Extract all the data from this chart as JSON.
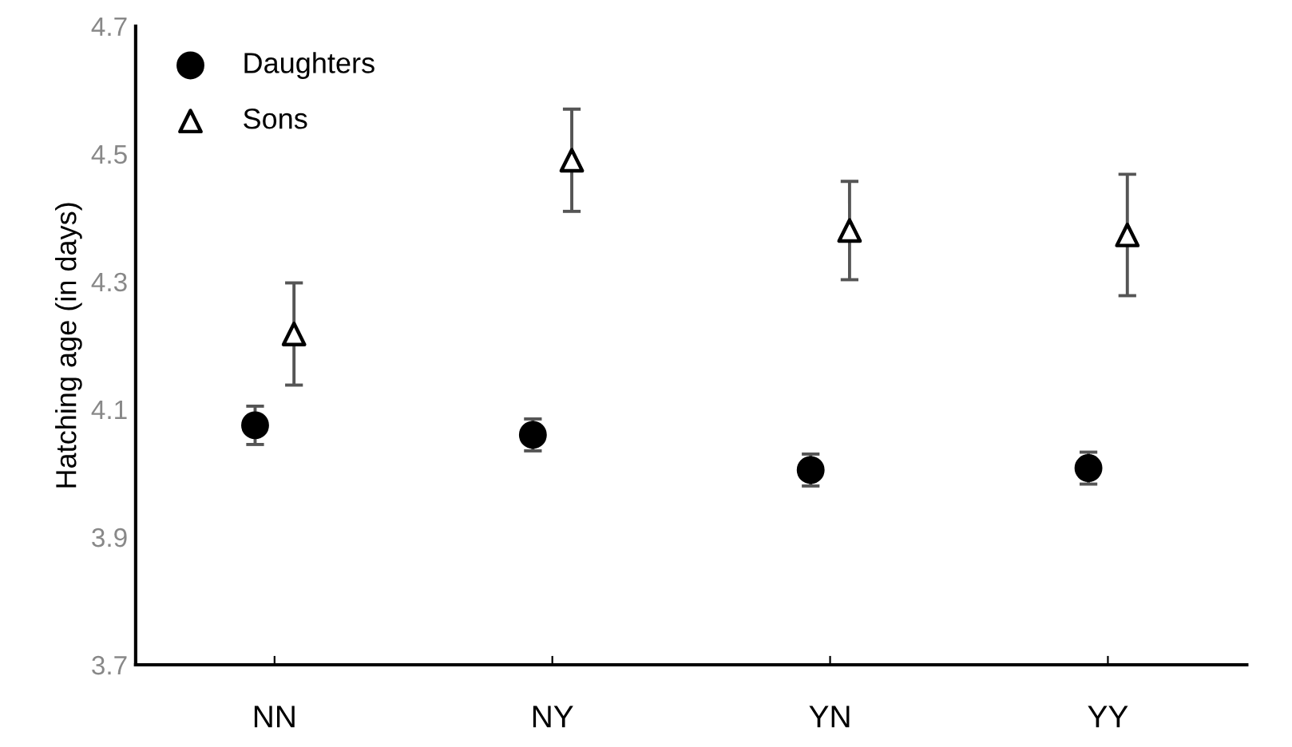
{
  "chart_data": {
    "type": "scatter",
    "categories": [
      "NN",
      "NY",
      "YN",
      "YY"
    ],
    "ylabel": "Hatching age (in days)",
    "ylim": [
      3.7,
      4.7
    ],
    "yticks": [
      3.7,
      3.9,
      4.1,
      4.3,
      4.5,
      4.7
    ],
    "grid": false,
    "legend": "top left",
    "series": [
      {
        "name": "Daughters",
        "color": "#000000",
        "marker": "circle",
        "values": [
          4.075,
          4.06,
          4.005,
          4.008
        ],
        "errors": [
          0.03,
          0.025,
          0.025,
          0.025
        ]
      },
      {
        "name": "Sons",
        "color": "#000000",
        "marker": "triangle",
        "values": [
          4.218,
          4.49,
          4.38,
          4.373
        ],
        "errors": [
          0.08,
          0.08,
          0.077,
          0.095
        ]
      }
    ]
  }
}
